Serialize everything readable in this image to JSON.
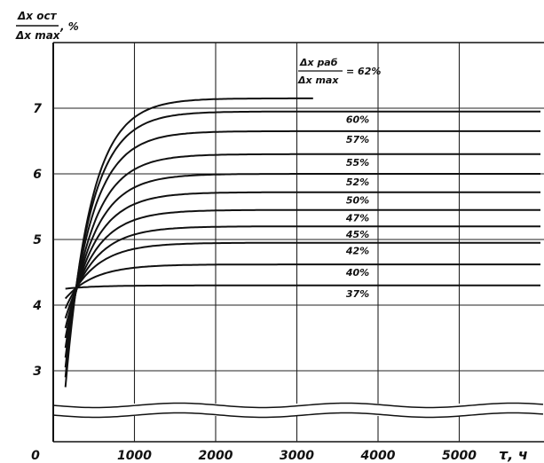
{
  "chart_data": {
    "type": "line",
    "ylabel_num": "Δx ост",
    "ylabel_den": "Δx max",
    "ylabel_unit": ", %",
    "xlabel": "τ, ч",
    "header_num": "Δx раб",
    "header_den": "Δx max",
    "header_value": "= 62%",
    "xlim": [
      0,
      6000
    ],
    "ylim": [
      3,
      7.5
    ],
    "x_ticks": [
      {
        "value": 0,
        "label": "0"
      },
      {
        "value": 1000,
        "label": "1000"
      },
      {
        "value": 2000,
        "label": "2000"
      },
      {
        "value": 3000,
        "label": "3000"
      },
      {
        "value": 4000,
        "label": "4000"
      },
      {
        "value": 5000,
        "label": "5000"
      }
    ],
    "y_ticks": [
      {
        "value": 3,
        "label": "3"
      },
      {
        "value": 4,
        "label": "4"
      },
      {
        "value": 5,
        "label": "5"
      },
      {
        "value": 6,
        "label": "6"
      },
      {
        "value": 7,
        "label": "7"
      }
    ],
    "series": [
      {
        "name": "",
        "asymptote": 7.15,
        "end_x": 3200
      },
      {
        "name": "60%",
        "asymptote": 6.95,
        "end_x": 6000
      },
      {
        "name": "57%",
        "asymptote": 6.65,
        "end_x": 6000
      },
      {
        "name": "55%",
        "asymptote": 6.3,
        "end_x": 6000
      },
      {
        "name": "52%",
        "asymptote": 6.0,
        "end_x": 6000
      },
      {
        "name": "50%",
        "asymptote": 5.72,
        "end_x": 6000
      },
      {
        "name": "47%",
        "asymptote": 5.45,
        "end_x": 6000
      },
      {
        "name": "45%",
        "asymptote": 5.2,
        "end_x": 6000
      },
      {
        "name": "42%",
        "asymptote": 4.95,
        "end_x": 6000
      },
      {
        "name": "40%",
        "asymptote": 4.62,
        "end_x": 6000
      },
      {
        "name": "37%",
        "asymptote": 4.3,
        "end_x": 6000
      }
    ]
  }
}
